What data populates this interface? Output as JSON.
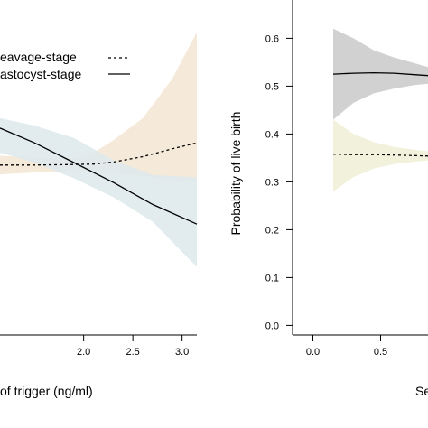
{
  "colors": {
    "cleavage_band": "#f3e6d2",
    "blastocyst_band": "#dde9ec",
    "left_overlap": "#e3e4dc",
    "right_top_band": "#c9c9c9",
    "right_bottom_band": "#efefd6",
    "line": "#000000",
    "axis": "#000000"
  },
  "chart_data": [
    {
      "type": "line",
      "title": "",
      "xlabel": "of trigger (ng/ml)",
      "ylabel": "",
      "xlim": [
        1.15,
        3.15
      ],
      "ylim": [
        0.0,
        0.68
      ],
      "xticks": [
        2.0,
        2.5,
        3.0
      ],
      "xtick_labels": [
        "2.0",
        "2.5",
        "3.0"
      ],
      "grid": false,
      "legend": {
        "placement": "top-left",
        "entries": [
          {
            "label": "eavage-stage",
            "line_style": "dashed"
          },
          {
            "label": "astocyst-stage",
            "line_style": "solid"
          }
        ]
      },
      "series": [
        {
          "line_style": "dashed",
          "band_color_key": "cleavage_band",
          "x": [
            1.15,
            1.5,
            1.9,
            2.1,
            2.3,
            2.6,
            2.9,
            3.15
          ],
          "y": [
            0.345,
            0.345,
            0.346,
            0.347,
            0.351,
            0.362,
            0.378,
            0.39
          ],
          "lower": [
            0.326,
            0.33,
            0.333,
            0.333,
            0.33,
            0.322,
            0.315,
            0.31
          ],
          "upper": [
            0.364,
            0.36,
            0.358,
            0.37,
            0.395,
            0.44,
            0.52,
            0.615
          ]
        },
        {
          "line_style": "solid",
          "band_color_key": "blastocyst_band",
          "x": [
            1.15,
            1.5,
            1.9,
            2.3,
            2.7,
            3.15
          ],
          "y": [
            0.42,
            0.39,
            0.35,
            0.31,
            0.265,
            0.225
          ],
          "lower": [
            0.37,
            0.35,
            0.318,
            0.28,
            0.23,
            0.138
          ],
          "upper": [
            0.44,
            0.425,
            0.4,
            0.355,
            0.325,
            0.32
          ]
        }
      ]
    },
    {
      "type": "line",
      "title": "",
      "xlabel": "Se",
      "ylabel": "Probability of live birth",
      "xlim": [
        -0.15,
        0.85
      ],
      "ylim": [
        -0.02,
        0.68
      ],
      "xticks": [
        0.0,
        0.5
      ],
      "xtick_labels": [
        "0.0",
        "0.5"
      ],
      "yticks": [
        0.0,
        0.1,
        0.2,
        0.3,
        0.4,
        0.5,
        0.6
      ],
      "ytick_labels": [
        "0.0",
        "0.1",
        "0.2",
        "0.3",
        "0.4",
        "0.5",
        "0.6"
      ],
      "grid": false,
      "series": [
        {
          "line_style": "solid",
          "band_color_key": "right_top_band",
          "x": [
            0.15,
            0.3,
            0.45,
            0.6,
            0.75,
            0.85
          ],
          "y": [
            0.525,
            0.527,
            0.528,
            0.527,
            0.524,
            0.522
          ],
          "lower": [
            0.43,
            0.465,
            0.485,
            0.495,
            0.502,
            0.505
          ],
          "upper": [
            0.62,
            0.6,
            0.575,
            0.56,
            0.548,
            0.54
          ]
        },
        {
          "line_style": "dashed",
          "band_color_key": "right_bottom_band",
          "x": [
            0.15,
            0.3,
            0.45,
            0.6,
            0.75,
            0.85
          ],
          "y": [
            0.358,
            0.357,
            0.357,
            0.356,
            0.355,
            0.354
          ],
          "lower": [
            0.28,
            0.31,
            0.328,
            0.337,
            0.342,
            0.345
          ],
          "upper": [
            0.43,
            0.4,
            0.383,
            0.373,
            0.367,
            0.364
          ]
        }
      ]
    }
  ]
}
